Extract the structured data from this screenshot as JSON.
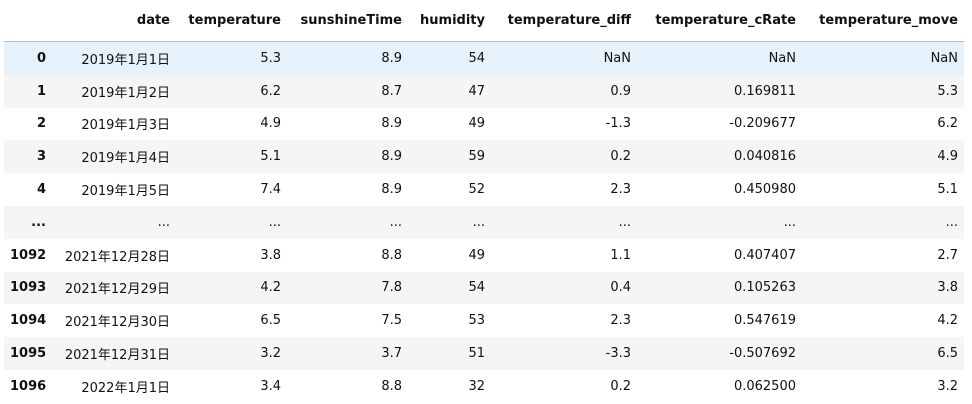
{
  "table": {
    "columns": [
      "date",
      "temperature",
      "sunshineTime",
      "humidity",
      "temperature_diff",
      "temperature_cRate",
      "temperature_move"
    ],
    "rows": [
      {
        "index": "0",
        "cells": [
          "2019年1月1日",
          "5.3",
          "8.9",
          "54",
          "NaN",
          "NaN",
          "NaN"
        ]
      },
      {
        "index": "1",
        "cells": [
          "2019年1月2日",
          "6.2",
          "8.7",
          "47",
          "0.9",
          "0.169811",
          "5.3"
        ]
      },
      {
        "index": "2",
        "cells": [
          "2019年1月3日",
          "4.9",
          "8.9",
          "49",
          "-1.3",
          "-0.209677",
          "6.2"
        ]
      },
      {
        "index": "3",
        "cells": [
          "2019年1月4日",
          "5.1",
          "8.9",
          "59",
          "0.2",
          "0.040816",
          "4.9"
        ]
      },
      {
        "index": "4",
        "cells": [
          "2019年1月5日",
          "7.4",
          "8.9",
          "52",
          "2.3",
          "0.450980",
          "5.1"
        ]
      },
      {
        "index": "...",
        "cells": [
          "...",
          "...",
          "...",
          "...",
          "...",
          "...",
          "..."
        ]
      },
      {
        "index": "1092",
        "cells": [
          "2021年12月28日",
          "3.8",
          "8.8",
          "49",
          "1.1",
          "0.407407",
          "2.7"
        ]
      },
      {
        "index": "1093",
        "cells": [
          "2021年12月29日",
          "4.2",
          "7.8",
          "54",
          "0.4",
          "0.105263",
          "3.8"
        ]
      },
      {
        "index": "1094",
        "cells": [
          "2021年12月30日",
          "6.5",
          "7.5",
          "53",
          "2.3",
          "0.547619",
          "4.2"
        ]
      },
      {
        "index": "1095",
        "cells": [
          "2021年12月31日",
          "3.2",
          "3.7",
          "51",
          "-3.3",
          "-0.507692",
          "6.5"
        ]
      },
      {
        "index": "1096",
        "cells": [
          "2022年1月1日",
          "3.4",
          "8.8",
          "32",
          "0.2",
          "0.062500",
          "3.2"
        ]
      }
    ]
  }
}
